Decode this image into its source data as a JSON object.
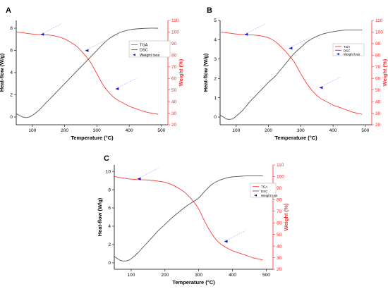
{
  "chart_data": [
    {
      "panel": "A",
      "type": "line",
      "xlabel": "Temperature (°C)",
      "ylabel_left": "Heat-flow (W/g)",
      "ylabel_right": "Weight (%)",
      "xlim": [
        50,
        520
      ],
      "ylim_left": [
        -0.7,
        8.7
      ],
      "ylim_right": [
        20,
        110
      ],
      "x_ticks": [
        100,
        200,
        300,
        400,
        500
      ],
      "y_ticks_left": [
        0,
        2,
        4,
        6,
        8
      ],
      "y_ticks_right": [
        20,
        30,
        40,
        50,
        60,
        70,
        80,
        90,
        100,
        110
      ],
      "legend": [
        "TGA",
        "DSC",
        "Weight loss"
      ],
      "series": [
        {
          "name": "TGA",
          "axis": "right",
          "color": "#ff3b3b",
          "x": [
            50,
            80,
            110,
            150,
            180,
            200,
            220,
            240,
            260,
            280,
            300,
            320,
            340,
            360,
            380,
            400,
            420,
            440,
            460,
            490
          ],
          "y": [
            100,
            99,
            98,
            97.5,
            96,
            94,
            91,
            87,
            81,
            74,
            64,
            54,
            47,
            42,
            39,
            36,
            34,
            32,
            30.5,
            29
          ]
        },
        {
          "name": "DSC",
          "axis": "left",
          "color": "#555555",
          "x": [
            50,
            60,
            70,
            80,
            90,
            100,
            120,
            140,
            160,
            180,
            200,
            220,
            240,
            260,
            280,
            300,
            320,
            340,
            360,
            380,
            400,
            420,
            440,
            460,
            490
          ],
          "y": [
            0.3,
            0.15,
            0.0,
            -0.05,
            0.0,
            0.15,
            0.6,
            1.2,
            1.8,
            2.4,
            3.0,
            3.6,
            4.2,
            4.8,
            5.4,
            6.0,
            6.6,
            7.1,
            7.45,
            7.7,
            7.85,
            7.93,
            7.97,
            8.0,
            8.0
          ]
        }
      ],
      "weight_loss_arrows": [
        {
          "x": 125,
          "y_weight": 98
        },
        {
          "x": 263,
          "y_weight": 84
        },
        {
          "x": 357,
          "y_weight": 51
        }
      ]
    },
    {
      "panel": "B",
      "type": "line",
      "xlabel": "Temperature (°C)",
      "ylabel_left": "Heat-flow (W/g)",
      "ylabel_right": "Weight (%)",
      "xlim": [
        50,
        520
      ],
      "ylim_left": [
        -0.4,
        5.0
      ],
      "ylim_right": [
        20,
        110
      ],
      "x_ticks": [
        100,
        200,
        300,
        400,
        500
      ],
      "y_ticks_left": [
        0,
        1,
        2,
        3,
        4,
        5
      ],
      "y_ticks_right": [
        20,
        30,
        40,
        50,
        60,
        70,
        80,
        90,
        100,
        110
      ],
      "legend": [
        "TGA",
        "DSC",
        "Weight loss"
      ],
      "series": [
        {
          "name": "TGA",
          "axis": "right",
          "color": "#ff3b3b",
          "x": [
            50,
            80,
            110,
            150,
            180,
            200,
            220,
            240,
            260,
            280,
            300,
            320,
            340,
            360,
            380,
            400,
            420,
            440,
            460,
            490
          ],
          "y": [
            100,
            99,
            98,
            97.5,
            96.5,
            95,
            92,
            87,
            81,
            74,
            64,
            55,
            48,
            43,
            40,
            37,
            35,
            33,
            31,
            29
          ]
        },
        {
          "name": "DSC",
          "axis": "left",
          "color": "#555555",
          "x": [
            50,
            60,
            70,
            80,
            90,
            100,
            120,
            140,
            160,
            180,
            200,
            220,
            240,
            260,
            280,
            300,
            320,
            340,
            360,
            380,
            400,
            420,
            440,
            460,
            490
          ],
          "y": [
            0.1,
            0.0,
            -0.1,
            -0.12,
            -0.08,
            0.05,
            0.35,
            0.75,
            1.1,
            1.45,
            1.8,
            2.1,
            2.5,
            2.9,
            3.3,
            3.6,
            3.9,
            4.1,
            4.25,
            4.35,
            4.42,
            4.47,
            4.5,
            4.5,
            4.5
          ]
        }
      ],
      "weight_loss_arrows": [
        {
          "x": 125,
          "y_weight": 98
        },
        {
          "x": 263,
          "y_weight": 86
        },
        {
          "x": 357,
          "y_weight": 52
        }
      ]
    },
    {
      "panel": "C",
      "type": "line",
      "xlabel": "Temperature (°C)",
      "ylabel_left": "Heat-flow (W/g)",
      "ylabel_right": "Weight (%)",
      "xlim": [
        50,
        520
      ],
      "ylim_left": [
        -0.7,
        10.7
      ],
      "ylim_right": [
        20,
        110
      ],
      "x_ticks": [
        100,
        200,
        300,
        400,
        500
      ],
      "y_ticks_left": [
        0,
        2,
        4,
        6,
        8,
        10
      ],
      "y_ticks_right": [
        20,
        30,
        40,
        50,
        60,
        70,
        80,
        90,
        100,
        110
      ],
      "legend": [
        "TGA",
        "DSC",
        "Weight loss"
      ],
      "series": [
        {
          "name": "TGA",
          "axis": "right",
          "color": "#ff3b3b",
          "x": [
            50,
            80,
            110,
            150,
            180,
            200,
            220,
            240,
            260,
            280,
            300,
            320,
            340,
            360,
            380,
            400,
            420,
            440,
            460,
            490
          ],
          "y": [
            100,
            98.5,
            97.5,
            97,
            96,
            95,
            93,
            90,
            86,
            80,
            72,
            60,
            50,
            43,
            39,
            36,
            34,
            32,
            30,
            28
          ]
        },
        {
          "name": "DSC",
          "axis": "left",
          "color": "#555555",
          "x": [
            50,
            60,
            70,
            80,
            90,
            100,
            120,
            140,
            160,
            180,
            200,
            220,
            240,
            260,
            280,
            300,
            320,
            340,
            360,
            380,
            400,
            420,
            440,
            460,
            490
          ],
          "y": [
            0.7,
            0.45,
            0.25,
            0.2,
            0.25,
            0.45,
            1.1,
            1.9,
            2.7,
            3.5,
            4.2,
            4.9,
            5.5,
            6.1,
            6.6,
            7.1,
            7.9,
            8.6,
            9.0,
            9.25,
            9.4,
            9.45,
            9.5,
            9.5,
            9.5
          ]
        }
      ],
      "weight_loss_arrows": [
        {
          "x": 118,
          "y_weight": 98
        },
        {
          "x": 375,
          "y_weight": 44
        }
      ]
    }
  ]
}
